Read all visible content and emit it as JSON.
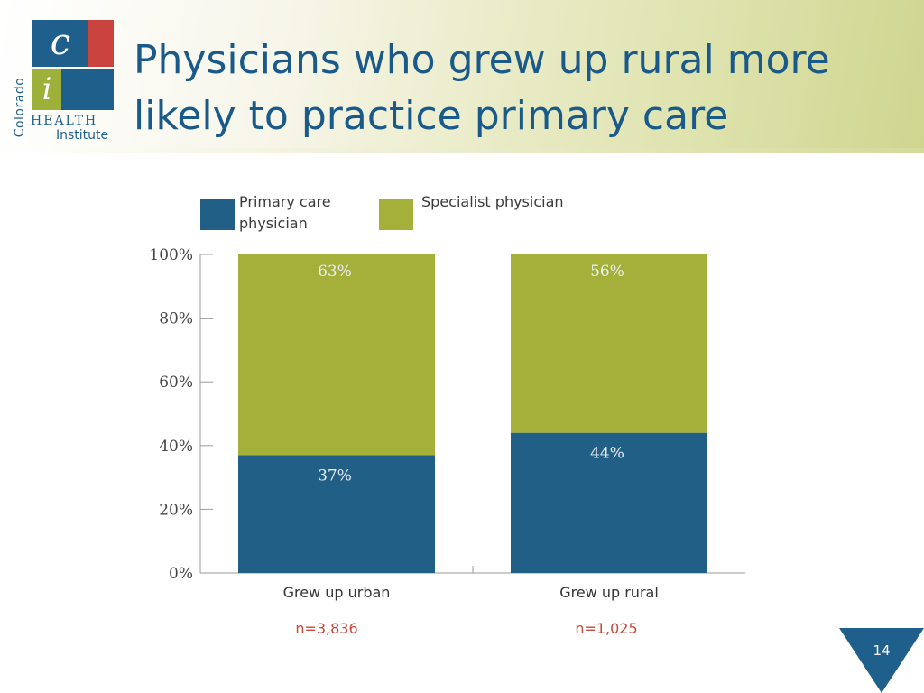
{
  "slide": {
    "title": "Physicians who grew up rural more likely to practice primary care",
    "page_number": "14"
  },
  "logo": {
    "vertical_text": "Colorado",
    "letter_c": "c",
    "letter_i": "i",
    "health": "HEALTH",
    "institute": "Institute"
  },
  "legend": [
    {
      "label_line1": "Primary care",
      "label_line2": "physician",
      "color": "#215f87"
    },
    {
      "label_line1": "Specialist physician",
      "label_line2": "",
      "color": "#a4b03a"
    }
  ],
  "sample_sizes": [
    "n=3,836",
    "n=1,025"
  ],
  "colors": {
    "primary": "#215f87",
    "specialist": "#a4b03a",
    "title": "#1a5a8a",
    "n_label": "#c44a3c"
  },
  "chart_data": {
    "type": "bar",
    "stacked": true,
    "categories": [
      "Grew up urban",
      "Grew up rural"
    ],
    "series": [
      {
        "name": "Primary care physician",
        "values": [
          37,
          44
        ],
        "labels": [
          "37%",
          "44%"
        ],
        "color": "#215f87"
      },
      {
        "name": "Specialist physician",
        "values": [
          63,
          56
        ],
        "labels": [
          "63%",
          "56%"
        ],
        "color": "#a4b03a"
      }
    ],
    "ylim": [
      0,
      100
    ],
    "yticks": [
      "0%",
      "20%",
      "40%",
      "60%",
      "80%",
      "100%"
    ],
    "ytick_values": [
      0,
      20,
      40,
      60,
      80,
      100
    ],
    "legend_position": "top",
    "grid": false
  }
}
